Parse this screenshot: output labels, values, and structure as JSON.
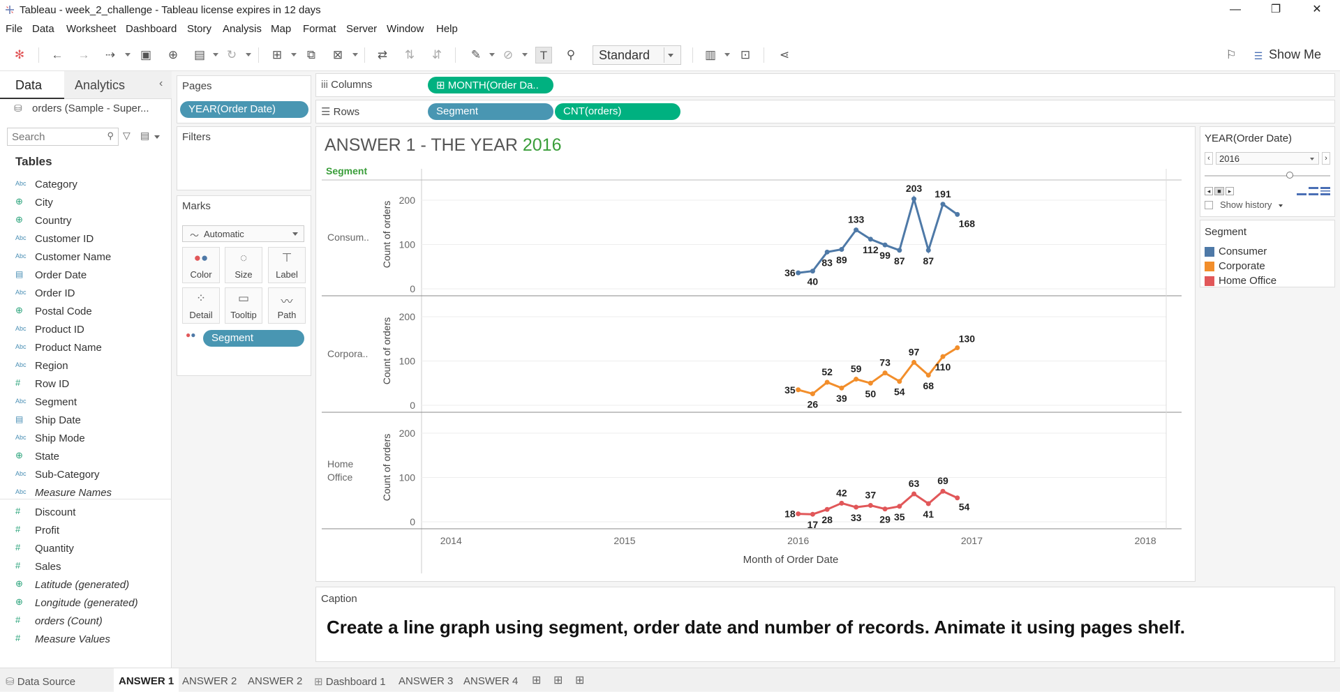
{
  "window": {
    "title": "Tableau - week_2_challenge - Tableau license expires in 12 days",
    "min": "—",
    "max": "❐",
    "close": "✕"
  },
  "menu": [
    "File",
    "Data",
    "Worksheet",
    "Dashboard",
    "Story",
    "Analysis",
    "Map",
    "Format",
    "Server",
    "Window",
    "Help"
  ],
  "toolbar": {
    "view_size": "Standard",
    "show_me": "Show Me"
  },
  "datapane": {
    "tab_data": "Data",
    "tab_analytics": "Analytics",
    "datasource": "orders (Sample - Super...",
    "search_placeholder": "Search",
    "tables_header": "Tables",
    "dimensions": [
      {
        "type": "Abc",
        "name": "Category"
      },
      {
        "type": "geo",
        "name": "City"
      },
      {
        "type": "geo",
        "name": "Country"
      },
      {
        "type": "Abc",
        "name": "Customer ID"
      },
      {
        "type": "Abc",
        "name": "Customer Name"
      },
      {
        "type": "date",
        "name": "Order Date"
      },
      {
        "type": "Abc",
        "name": "Order ID"
      },
      {
        "type": "geo",
        "name": "Postal Code"
      },
      {
        "type": "Abc",
        "name": "Product ID"
      },
      {
        "type": "Abc",
        "name": "Product Name"
      },
      {
        "type": "Abc",
        "name": "Region"
      },
      {
        "type": "#",
        "name": "Row ID"
      },
      {
        "type": "Abc",
        "name": "Segment"
      },
      {
        "type": "date",
        "name": "Ship Date"
      },
      {
        "type": "Abc",
        "name": "Ship Mode"
      },
      {
        "type": "geo",
        "name": "State"
      },
      {
        "type": "Abc",
        "name": "Sub-Category"
      },
      {
        "type": "Abc",
        "name": "Measure Names",
        "italic": true
      }
    ],
    "measures": [
      {
        "type": "#",
        "name": "Discount"
      },
      {
        "type": "#",
        "name": "Profit"
      },
      {
        "type": "#",
        "name": "Quantity"
      },
      {
        "type": "#",
        "name": "Sales"
      },
      {
        "type": "geo",
        "name": "Latitude (generated)",
        "italic": true
      },
      {
        "type": "geo",
        "name": "Longitude (generated)",
        "italic": true
      },
      {
        "type": "#",
        "name": "orders (Count)",
        "italic": true
      },
      {
        "type": "#",
        "name": "Measure Values",
        "italic": true
      }
    ]
  },
  "pages": {
    "header": "Pages",
    "pill": "YEAR(Order Date)"
  },
  "filters": {
    "header": "Filters"
  },
  "marks": {
    "header": "Marks",
    "type": "Automatic",
    "buttons": [
      "Color",
      "Size",
      "Label",
      "Detail",
      "Tooltip",
      "Path"
    ],
    "pill": "Segment"
  },
  "shelves": {
    "columns_label": "Columns",
    "columns_pill": "MONTH(Order Da..",
    "rows_label": "Rows",
    "rows_pills": [
      "Segment",
      "CNT(orders)"
    ]
  },
  "viz": {
    "title_prefix": "ANSWER 1 -  THE YEAR ",
    "title_year": "2016",
    "row_header": "Segment",
    "panes": [
      "Consum..",
      "Corpora..",
      "Home Office"
    ],
    "y_axis_title": "Count of orders",
    "x_axis_title": "Month of Order Date",
    "year_color": "#3a9e3a"
  },
  "page_control": {
    "header": "YEAR(Order Date)",
    "value": "2016",
    "show_history": "Show history"
  },
  "legend": {
    "header": "Segment",
    "items": [
      {
        "name": "Consumer",
        "color": "#4e79a7"
      },
      {
        "name": "Corporate",
        "color": "#f28e2b"
      },
      {
        "name": "Home Office",
        "color": "#e15759"
      }
    ]
  },
  "caption": {
    "header": "Caption",
    "text": "Create a line graph using segment, order date and number of records. Animate it using pages shelf."
  },
  "tabs": [
    "Data Source",
    "ANSWER 1",
    "ANSWER 2",
    "ANSWER 2",
    "Dashboard 1",
    "ANSWER 3",
    "ANSWER 4"
  ],
  "chart_data": {
    "type": "line",
    "title": "ANSWER 1 -  THE YEAR 2016",
    "xlabel": "Month of Order Date",
    "ylabel": "Count of orders",
    "x_ticks": [
      "2014",
      "2015",
      "2016",
      "2017",
      "2018"
    ],
    "y_ticks": [
      0,
      100,
      200
    ],
    "ylim": [
      0,
      230
    ],
    "x": [
      "2016-01",
      "2016-02",
      "2016-03",
      "2016-04",
      "2016-05",
      "2016-06",
      "2016-07",
      "2016-08",
      "2016-09",
      "2016-10",
      "2016-11",
      "2016-12"
    ],
    "series": [
      {
        "name": "Consumer",
        "color": "#4e79a7",
        "values": [
          36,
          40,
          83,
          89,
          133,
          112,
          99,
          87,
          203,
          87,
          191,
          168
        ]
      },
      {
        "name": "Corporate",
        "color": "#f28e2b",
        "values": [
          35,
          26,
          52,
          39,
          59,
          50,
          73,
          54,
          97,
          68,
          110,
          130
        ]
      },
      {
        "name": "Home Office",
        "color": "#e15759",
        "values": [
          18,
          17,
          28,
          42,
          33,
          37,
          29,
          35,
          63,
          41,
          69,
          54
        ]
      }
    ]
  }
}
